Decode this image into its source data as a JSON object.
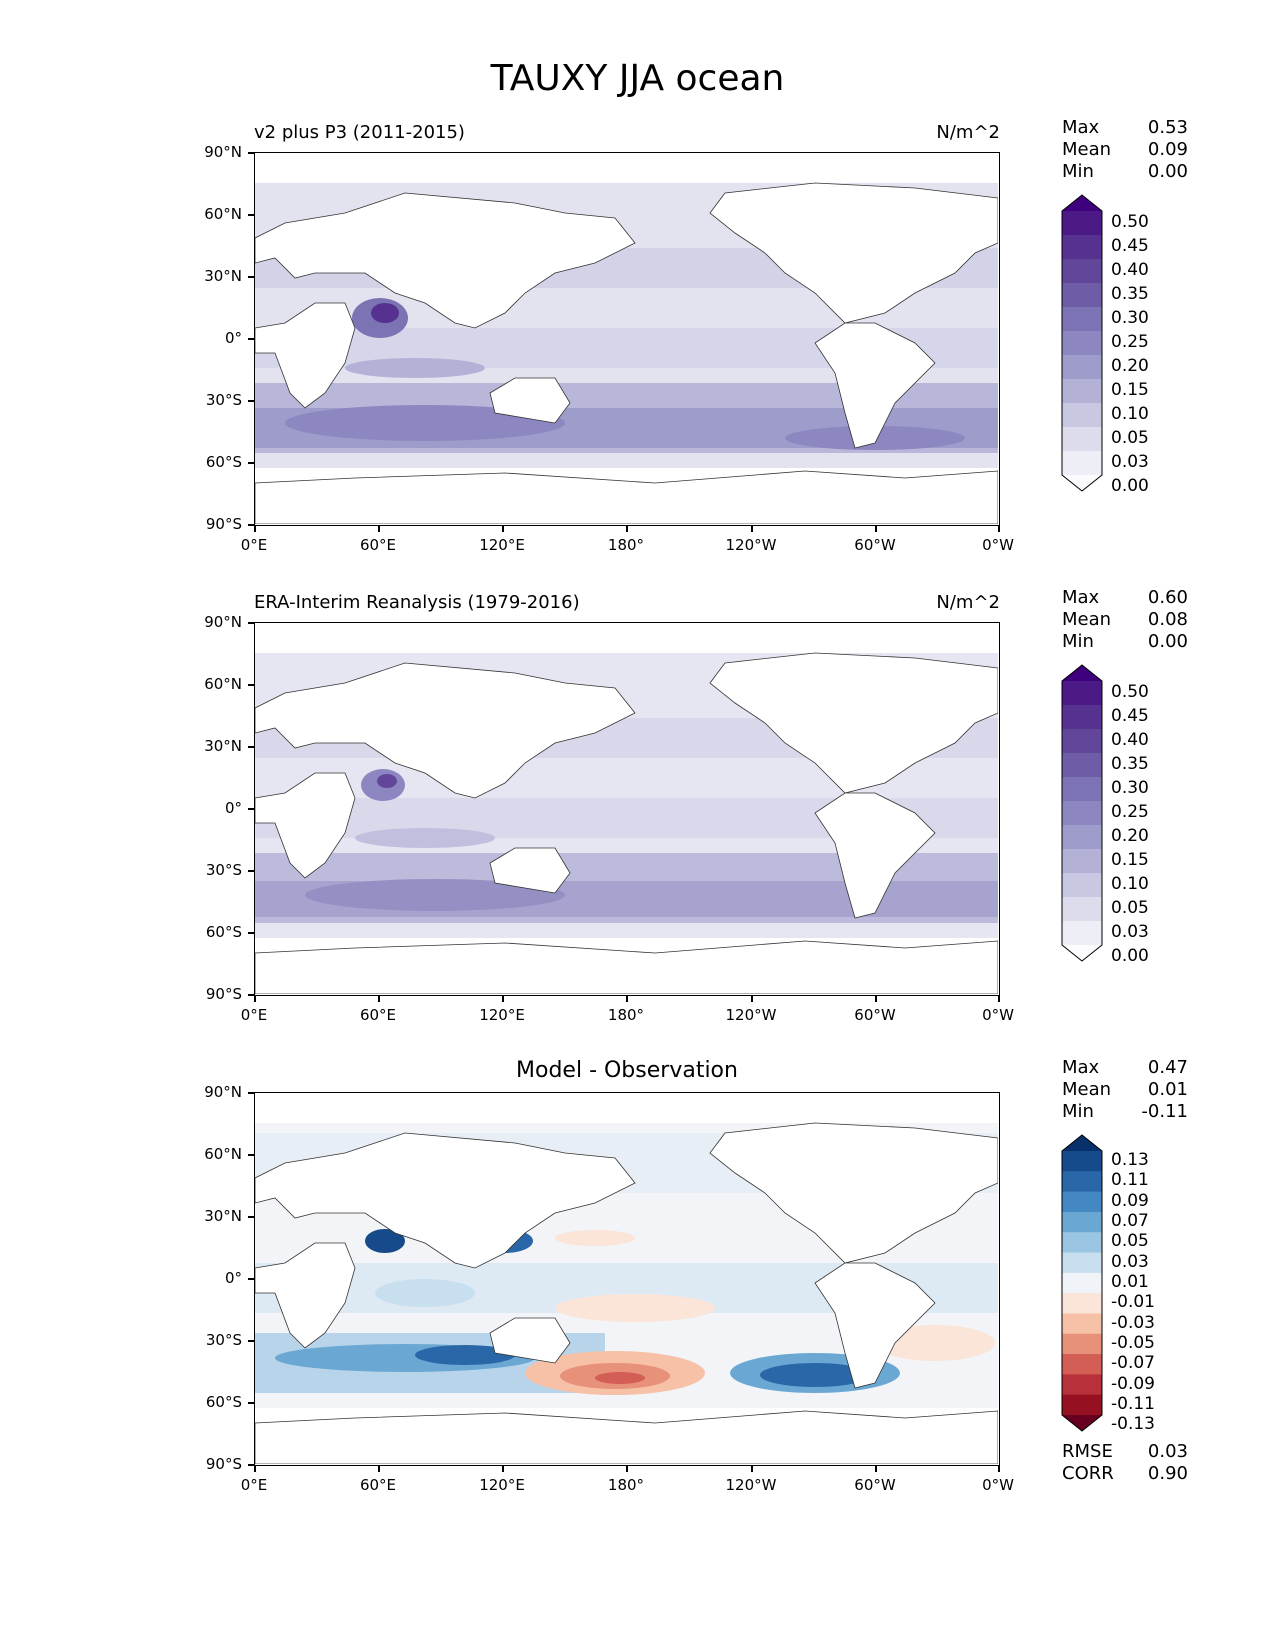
{
  "title": "TAUXY JJA ocean",
  "lat_labels": [
    "90°N",
    "60°N",
    "30°N",
    "0°",
    "30°S",
    "60°S",
    "90°S"
  ],
  "lon_labels": [
    "0°E",
    "60°E",
    "120°E",
    "180°",
    "120°W",
    "60°W",
    "0°W"
  ],
  "panels": [
    {
      "title": "v2 plus P3 (2011-2015)",
      "unit": "N/m^2",
      "stats": [
        {
          "label": "Max",
          "value": "0.53"
        },
        {
          "label": "Mean",
          "value": "0.09"
        },
        {
          "label": "Min",
          "value": "0.00"
        }
      ],
      "colorbar": {
        "labels": [
          "0.50",
          "0.45",
          "0.40",
          "0.35",
          "0.30",
          "0.25",
          "0.20",
          "0.15",
          "0.10",
          "0.05",
          "0.03",
          "0.00"
        ],
        "colors": [
          "#3f007d",
          "#4b1a86",
          "#56318f",
          "#624699",
          "#6e5ca6",
          "#7c73b4",
          "#8c87c0",
          "#9e9ccb",
          "#b3b1d6",
          "#c8c8e2",
          "#dcdced",
          "#eeeef6",
          "#fcfbfd"
        ]
      }
    },
    {
      "title": "ERA-Interim Reanalysis (1979-2016)",
      "unit": "N/m^2",
      "stats": [
        {
          "label": "Max",
          "value": "0.60"
        },
        {
          "label": "Mean",
          "value": "0.08"
        },
        {
          "label": "Min",
          "value": "0.00"
        }
      ],
      "colorbar": {
        "labels": [
          "0.50",
          "0.45",
          "0.40",
          "0.35",
          "0.30",
          "0.25",
          "0.20",
          "0.15",
          "0.10",
          "0.05",
          "0.03",
          "0.00"
        ],
        "colors": [
          "#3f007d",
          "#4b1a86",
          "#56318f",
          "#624699",
          "#6e5ca6",
          "#7c73b4",
          "#8c87c0",
          "#9e9ccb",
          "#b3b1d6",
          "#c8c8e2",
          "#dcdced",
          "#eeeef6",
          "#fcfbfd"
        ]
      }
    },
    {
      "title": "Model - Observation",
      "stats": [
        {
          "label": "Max",
          "value": "0.47"
        },
        {
          "label": "Mean",
          "value": "0.01"
        },
        {
          "label": "Min",
          "value": "-0.11"
        }
      ],
      "colorbar": {
        "labels": [
          "0.13",
          "0.11",
          "0.09",
          "0.07",
          "0.05",
          "0.03",
          "0.01",
          "-0.01",
          "-0.03",
          "-0.05",
          "-0.07",
          "-0.09",
          "-0.11",
          "-0.13"
        ],
        "colors": [
          "#08306b",
          "#174a8a",
          "#2a67a8",
          "#4488c3",
          "#6aa8d3",
          "#9ac6e3",
          "#c8dfef",
          "#f0f4f8",
          "#fbe4d8",
          "#f6c1a7",
          "#e8917a",
          "#d35e55",
          "#b7303a",
          "#951020",
          "#67001f"
        ]
      },
      "metrics": [
        {
          "label": "RMSE",
          "value": "0.03"
        },
        {
          "label": "CORR",
          "value": "0.90"
        }
      ]
    }
  ]
}
